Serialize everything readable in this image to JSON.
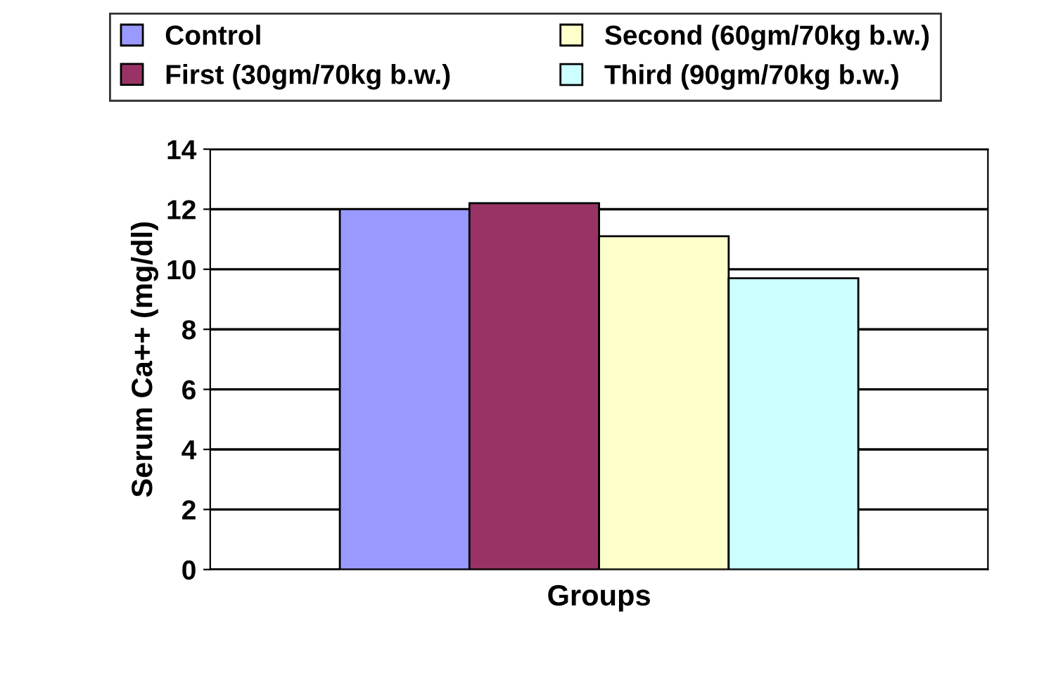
{
  "chart_data": {
    "type": "bar",
    "categories": [
      null
    ],
    "xlabel": "Groups",
    "ylabel": "Serum Ca++ (mg/dl)",
    "series": [
      {
        "name": "Control",
        "color": "#9999ff",
        "values": [
          12.0
        ]
      },
      {
        "name": "First (30gm/70kg b.w.)",
        "color": "#993366",
        "values": [
          12.2
        ]
      },
      {
        "name": "Second (60gm/70kg b.w.)",
        "color": "#ffffcc",
        "values": [
          11.1
        ]
      },
      {
        "name": "Third (90gm/70kg b.w.)",
        "color": "#ccffff",
        "values": [
          9.7
        ]
      }
    ],
    "ylim": [
      0,
      14
    ],
    "yticks": [
      0,
      2,
      4,
      6,
      8,
      10,
      12,
      14
    ],
    "grid": "y",
    "legend": "top"
  }
}
